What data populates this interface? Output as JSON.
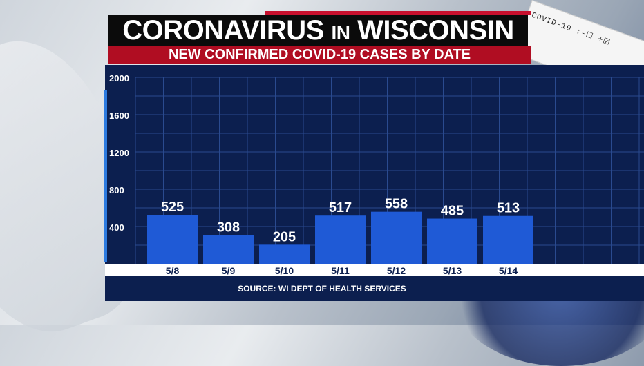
{
  "header": {
    "title_main": "CORONAVIRUS",
    "title_mid": "IN",
    "title_end": "WISCONSIN",
    "subtitle": "NEW CONFIRMED COVID-19 CASES BY DATE"
  },
  "background": {
    "test_card_text": "COVID-19 :-☐ +☑"
  },
  "footer": {
    "source": "SOURCE: WI DEPT OF HEALTH SERVICES"
  },
  "colors": {
    "bar": "#1f5ad6",
    "panel": "#0c1f4f",
    "grid": "#2a4a8f",
    "accent": "#2d7be0",
    "title_red": "#b00d22"
  },
  "chart_data": {
    "type": "bar",
    "categories": [
      "5/8",
      "5/9",
      "5/10",
      "5/11",
      "5/12",
      "5/13",
      "5/14"
    ],
    "values": [
      525,
      308,
      205,
      517,
      558,
      485,
      513
    ],
    "y_ticks": [
      "400",
      "800",
      "1200",
      "1600",
      "2000"
    ],
    "ylim": [
      0,
      2000
    ],
    "grid": true,
    "data_labels": true
  }
}
